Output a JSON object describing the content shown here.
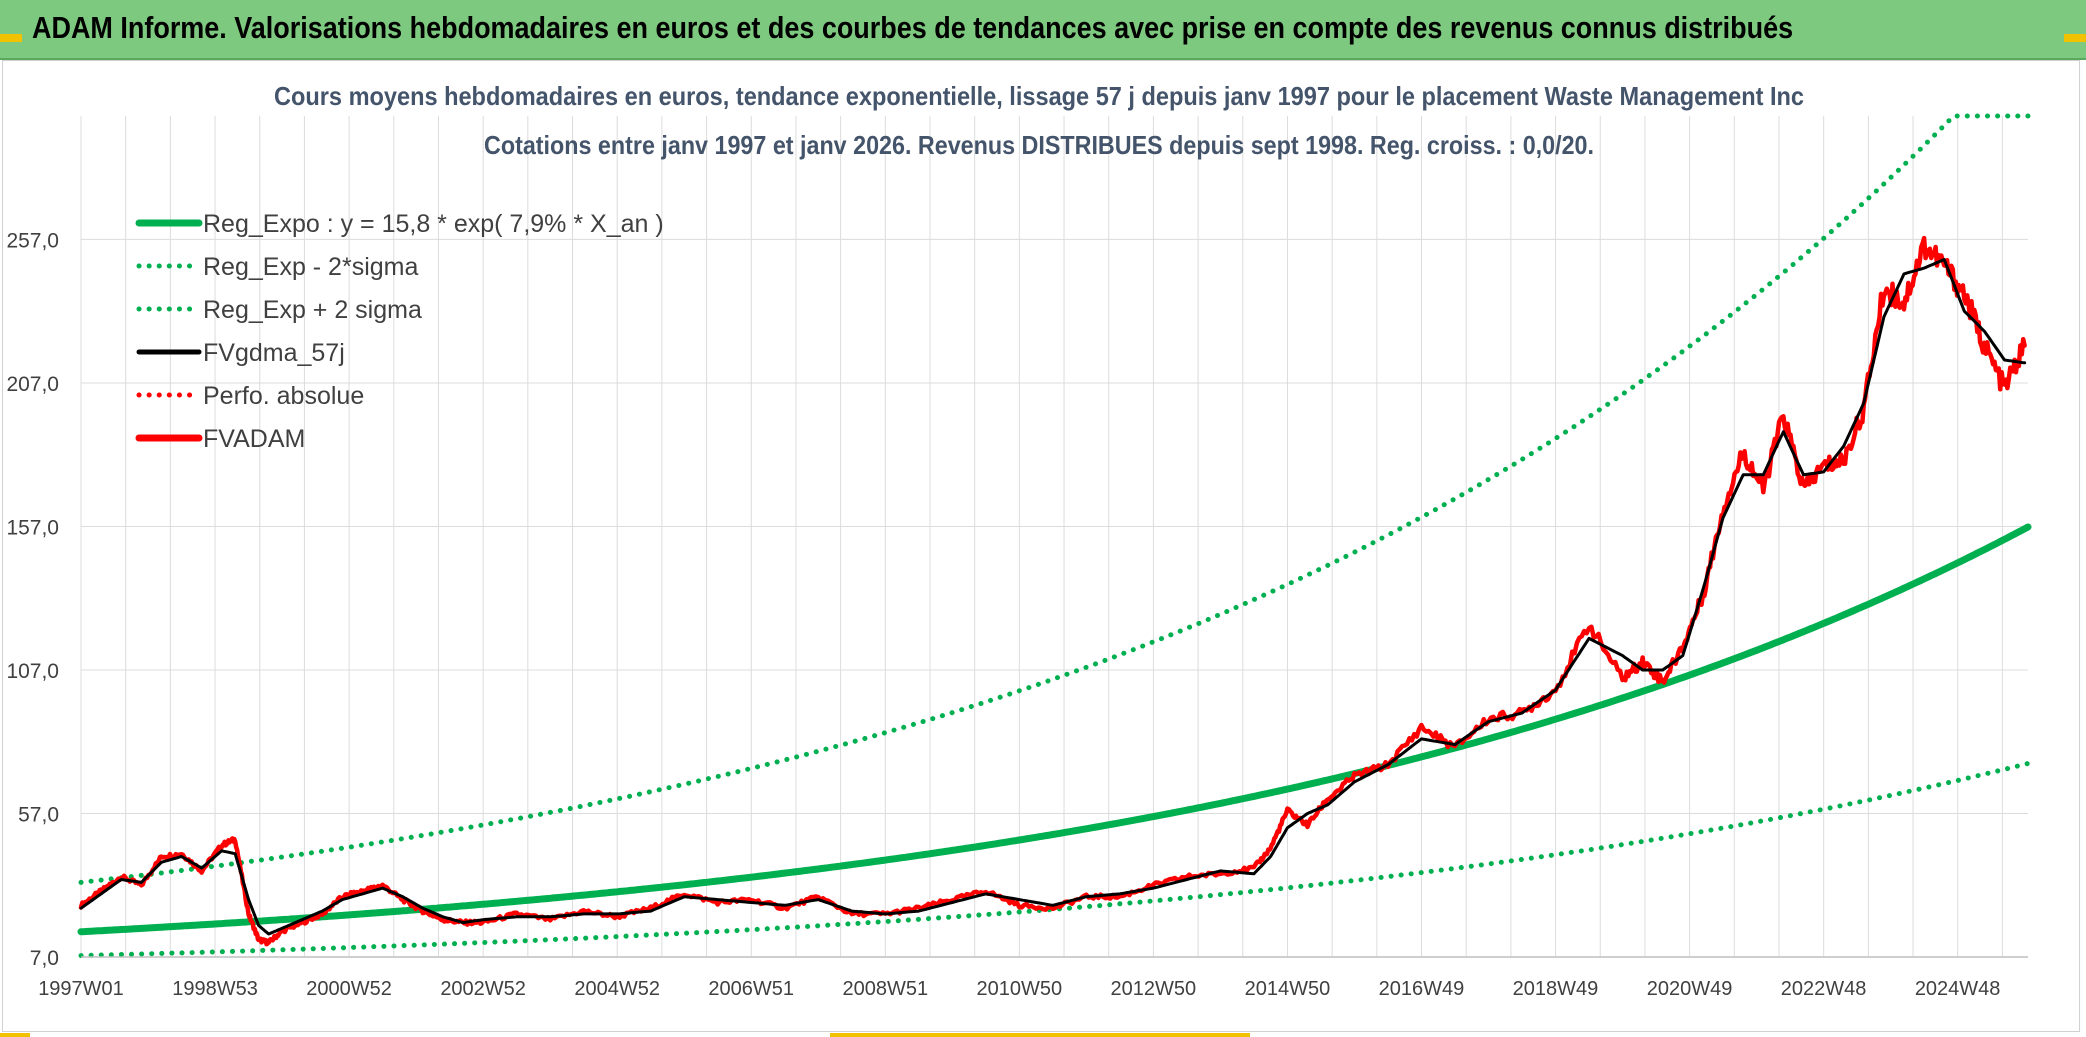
{
  "banner": {
    "title": "ADAM Informe. Valorisations hebdomadaires en euros et des courbes de tendances avec prise en compte des revenus connus distribués"
  },
  "colors": {
    "banner_bg": "#7dc97f",
    "reg_expo": "#00b050",
    "fvgdma": "#000000",
    "fvadam": "#ff0000"
  },
  "chart_data": {
    "type": "line",
    "title": "Cours moyens hebdomadaires en euros, tendance exponentielle, lissage 57 j depuis janv 1997 pour le placement Waste Management Inc",
    "subtitle": "Cotations entre janv 1997 et janv 2026. Revenus DISTRIBUES depuis sept 1998. Reg. croiss. : 0,0/20.",
    "xlabel": "",
    "ylabel": "",
    "x_range": [
      1997.0,
      2026.05
    ],
    "ylim": [
      7.0,
      300.0
    ],
    "y_ticks": [
      "7,0",
      "57,0",
      "107,0",
      "157,0",
      "207,0",
      "257,0"
    ],
    "y_tick_values": [
      7,
      57,
      107,
      157,
      207,
      257
    ],
    "x_tick_labels": [
      "1997W01",
      "1998W53",
      "2000W52",
      "2002W52",
      "2004W52",
      "2006W51",
      "2008W51",
      "2010W50",
      "2012W50",
      "2014W50",
      "2016W49",
      "2018W49",
      "2020W49",
      "2022W48",
      "2024W48"
    ],
    "x_tick_values": [
      1997.0,
      1999.0,
      2001.0,
      2003.0,
      2005.0,
      2007.0,
      2009.0,
      2011.0,
      2013.0,
      2015.0,
      2017.0,
      2019.0,
      2021.0,
      2023.0,
      2025.0
    ],
    "grid": true,
    "legend_position": "top-left",
    "series": [
      {
        "name": "Reg_Expo : y = 15,8 * exp( 7,9% *  X_an )",
        "style": "solid-thick",
        "color": "#00b050",
        "formula": {
          "a": 15.8,
          "rate": 0.079,
          "start_year": 1997.0
        }
      },
      {
        "name": "Reg_Exp - 2*sigma",
        "style": "dotted",
        "color": "#00b050",
        "formula": {
          "a": 7.5,
          "rate": 0.079,
          "start_year": 1997.0
        }
      },
      {
        "name": "Reg_Exp + 2 sigma",
        "style": "dotted",
        "color": "#00b050",
        "formula": {
          "a": 33.0,
          "rate": 0.079,
          "start_year": 1997.0,
          "cap": 300.0
        }
      },
      {
        "name": "FVgdma_57j",
        "style": "solid",
        "color": "#000000",
        "x": [
          1997.0,
          1997.3,
          1997.6,
          1997.9,
          1998.2,
          1998.5,
          1998.8,
          1999.1,
          1999.3,
          1999.5,
          1999.65,
          1999.8,
          2000.0,
          2000.3,
          2000.6,
          2000.9,
          2001.2,
          2001.5,
          2001.8,
          2002.1,
          2002.4,
          2002.7,
          2003.0,
          2003.5,
          2004.0,
          2004.5,
          2005.0,
          2005.5,
          2006.0,
          2006.5,
          2007.0,
          2007.5,
          2008.0,
          2008.5,
          2009.0,
          2009.5,
          2010.0,
          2010.5,
          2011.0,
          2011.5,
          2012.0,
          2012.5,
          2013.0,
          2013.5,
          2014.0,
          2014.5,
          2014.75,
          2015.0,
          2015.3,
          2015.6,
          2016.0,
          2016.5,
          2017.0,
          2017.5,
          2018.0,
          2018.5,
          2019.0,
          2019.5,
          2020.0,
          2020.3,
          2020.6,
          2020.9,
          2021.2,
          2021.5,
          2021.8,
          2022.1,
          2022.4,
          2022.7,
          2023.0,
          2023.3,
          2023.6,
          2023.9,
          2024.2,
          2024.5,
          2024.8,
          2025.1,
          2025.4,
          2025.7,
          2026.0
        ],
        "y": [
          24,
          29,
          34,
          33,
          40,
          42,
          38,
          44,
          43,
          27,
          18,
          15,
          17,
          20,
          23,
          27,
          29,
          31,
          28,
          24,
          21,
          19,
          20,
          21,
          21,
          22,
          22,
          23,
          28,
          27,
          26,
          25,
          27,
          23,
          22,
          23,
          26,
          29,
          27,
          25,
          28,
          29,
          31,
          34,
          37,
          36,
          42,
          52,
          57,
          60,
          68,
          74,
          83,
          81,
          89,
          92,
          100,
          118,
          112,
          107,
          107,
          112,
          135,
          160,
          175,
          175,
          190,
          175,
          176,
          185,
          200,
          230,
          245,
          247,
          250,
          232,
          225,
          215,
          214
        ]
      },
      {
        "name": "Perfo. absolue",
        "style": "dotted",
        "color": "#ff0000",
        "values": []
      },
      {
        "name": "FVADAM",
        "style": "solid-thick",
        "color": "#ff0000",
        "x": [
          1997.0,
          1997.3,
          1997.6,
          1997.9,
          1998.2,
          1998.5,
          1998.8,
          1999.1,
          1999.3,
          1999.5,
          1999.65,
          1999.8,
          2000.0,
          2000.3,
          2000.6,
          2000.9,
          2001.2,
          2001.5,
          2001.8,
          2002.1,
          2002.4,
          2002.7,
          2003.0,
          2003.5,
          2004.0,
          2004.5,
          2005.0,
          2005.5,
          2006.0,
          2006.5,
          2007.0,
          2007.5,
          2008.0,
          2008.5,
          2009.0,
          2009.5,
          2010.0,
          2010.5,
          2011.0,
          2011.5,
          2012.0,
          2012.5,
          2013.0,
          2013.5,
          2014.0,
          2014.5,
          2014.75,
          2015.0,
          2015.3,
          2015.6,
          2016.0,
          2016.5,
          2017.0,
          2017.5,
          2018.0,
          2018.5,
          2019.0,
          2019.5,
          2020.0,
          2020.3,
          2020.6,
          2020.9,
          2021.2,
          2021.5,
          2021.8,
          2022.1,
          2022.4,
          2022.7,
          2023.0,
          2023.3,
          2023.6,
          2023.9,
          2024.2,
          2024.5,
          2024.8,
          2025.1,
          2025.4,
          2025.7,
          2026.0
        ],
        "y": [
          25,
          30,
          35,
          32,
          42,
          43,
          37,
          46,
          48,
          22,
          13,
          12,
          16,
          19,
          22,
          28,
          30,
          32,
          27,
          23,
          20,
          19,
          19,
          22,
          20,
          23,
          21,
          24,
          29,
          26,
          27,
          24,
          28,
          22,
          22,
          24,
          27,
          30,
          25,
          24,
          28,
          28,
          32,
          35,
          36,
          38,
          45,
          58,
          53,
          62,
          70,
          74,
          87,
          80,
          90,
          92,
          100,
          123,
          104,
          110,
          103,
          115,
          133,
          163,
          183,
          170,
          196,
          170,
          178,
          180,
          198,
          240,
          235,
          255,
          248,
          238,
          220,
          205,
          220
        ]
      }
    ]
  }
}
